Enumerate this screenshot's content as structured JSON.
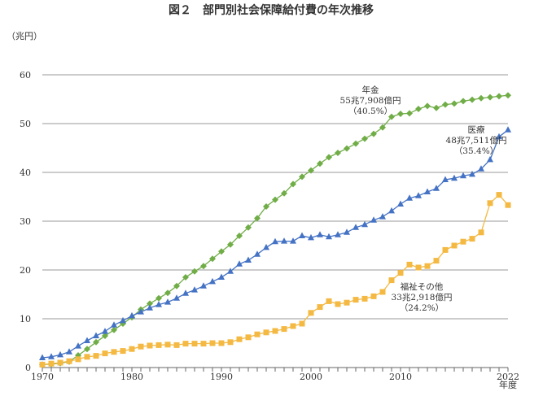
{
  "chart_data": {
    "type": "line",
    "title": "図２　部門別社会保障給付費の年次推移",
    "ylabel": "（兆円）",
    "xlabel": "年度",
    "ylim": [
      0,
      60
    ],
    "xlim": [
      1970,
      2022
    ],
    "yticks": [
      0,
      10,
      20,
      30,
      40,
      50,
      60
    ],
    "xticks": [
      1970,
      1980,
      1990,
      2000,
      2010,
      2022
    ],
    "grid": "horizontal",
    "x": [
      1970,
      1971,
      1972,
      1973,
      1974,
      1975,
      1976,
      1977,
      1978,
      1979,
      1980,
      1981,
      1982,
      1983,
      1984,
      1985,
      1986,
      1987,
      1988,
      1989,
      1990,
      1991,
      1992,
      1993,
      1994,
      1995,
      1996,
      1997,
      1998,
      1999,
      2000,
      2001,
      2002,
      2003,
      2004,
      2005,
      2006,
      2007,
      2008,
      2009,
      2010,
      2011,
      2012,
      2013,
      2014,
      2015,
      2016,
      2017,
      2018,
      2019,
      2020,
      2021,
      2022
    ],
    "series": [
      {
        "name": "年金",
        "color": "#70ad47",
        "marker": "diamond",
        "annotation": [
          "年金",
          "55兆7,908億円",
          "（40.5%）"
        ],
        "values": [
          0.6,
          0.7,
          0.9,
          1.2,
          2.5,
          3.8,
          5.2,
          6.5,
          7.7,
          9.0,
          10.3,
          11.9,
          13.1,
          14.2,
          15.3,
          16.7,
          18.5,
          19.7,
          20.8,
          22.3,
          23.8,
          25.2,
          27.0,
          28.7,
          30.6,
          33.0,
          34.4,
          35.7,
          37.6,
          39.1,
          40.4,
          41.8,
          43.1,
          44.0,
          44.9,
          45.9,
          46.9,
          47.9,
          49.2,
          51.4,
          52.0,
          52.1,
          53.0,
          53.6,
          53.2,
          53.9,
          54.1,
          54.6,
          54.9,
          55.2,
          55.4,
          55.6,
          55.8
        ]
      },
      {
        "name": "医療",
        "color": "#4472c4",
        "marker": "triangle",
        "annotation": [
          "医療",
          "48兆7,511億円",
          "（35.4%）"
        ],
        "values": [
          2.0,
          2.2,
          2.6,
          3.2,
          4.4,
          5.5,
          6.5,
          7.4,
          8.7,
          9.6,
          10.6,
          11.4,
          12.2,
          12.9,
          13.4,
          14.2,
          15.2,
          15.9,
          16.7,
          17.6,
          18.5,
          19.7,
          21.2,
          22.0,
          23.2,
          24.6,
          25.8,
          25.9,
          25.9,
          27.0,
          26.6,
          27.2,
          26.8,
          27.2,
          27.7,
          28.7,
          29.3,
          30.2,
          30.9,
          32.1,
          33.5,
          34.7,
          35.2,
          36.0,
          36.7,
          38.5,
          38.8,
          39.3,
          39.6,
          40.7,
          42.6,
          47.3,
          48.7
        ]
      },
      {
        "name": "福祉その他",
        "color": "#f4b942",
        "marker": "square",
        "annotation": [
          "福祉その他",
          "33兆2,918億円",
          "（24.2%）"
        ],
        "values": [
          0.6,
          0.8,
          1.0,
          1.3,
          1.7,
          2.2,
          2.4,
          2.9,
          3.2,
          3.4,
          3.8,
          4.3,
          4.5,
          4.6,
          4.7,
          4.6,
          4.9,
          4.9,
          4.9,
          5.0,
          5.0,
          5.2,
          5.8,
          6.2,
          6.8,
          7.2,
          7.5,
          7.9,
          8.5,
          9.0,
          11.2,
          12.4,
          13.6,
          13.0,
          13.3,
          13.9,
          14.1,
          14.6,
          15.5,
          17.9,
          19.4,
          21.1,
          20.5,
          20.8,
          21.9,
          24.1,
          25.0,
          25.8,
          26.4,
          27.7,
          33.7,
          35.4,
          33.3
        ]
      }
    ]
  }
}
